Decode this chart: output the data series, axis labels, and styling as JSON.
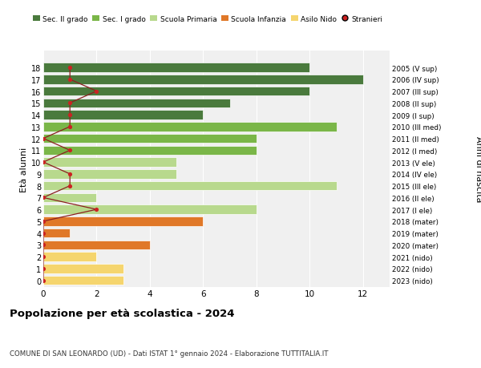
{
  "ages": [
    18,
    17,
    16,
    15,
    14,
    13,
    12,
    11,
    10,
    9,
    8,
    7,
    6,
    5,
    4,
    3,
    2,
    1,
    0
  ],
  "right_labels": [
    "2005 (V sup)",
    "2006 (IV sup)",
    "2007 (III sup)",
    "2008 (II sup)",
    "2009 (I sup)",
    "2010 (III med)",
    "2011 (II med)",
    "2012 (I med)",
    "2013 (V ele)",
    "2014 (IV ele)",
    "2015 (III ele)",
    "2016 (II ele)",
    "2017 (I ele)",
    "2018 (mater)",
    "2019 (mater)",
    "2020 (mater)",
    "2021 (nido)",
    "2022 (nido)",
    "2023 (nido)"
  ],
  "bar_values": [
    10,
    12,
    10,
    7,
    6,
    11,
    8,
    8,
    5,
    5,
    11,
    2,
    8,
    6,
    1,
    4,
    2,
    3,
    3
  ],
  "bar_colors": [
    "#4a7a3d",
    "#4a7a3d",
    "#4a7a3d",
    "#4a7a3d",
    "#4a7a3d",
    "#7ab648",
    "#7ab648",
    "#7ab648",
    "#b8d98d",
    "#b8d98d",
    "#b8d98d",
    "#b8d98d",
    "#b8d98d",
    "#e07828",
    "#e07828",
    "#e07828",
    "#f5d56e",
    "#f5d56e",
    "#f5d56e"
  ],
  "stranieri_x": [
    1,
    1,
    2,
    1,
    1,
    1,
    0,
    1,
    0,
    1,
    1,
    0,
    2,
    0,
    0,
    0,
    0,
    0,
    0
  ],
  "legend_labels": [
    "Sec. II grado",
    "Sec. I grado",
    "Scuola Primaria",
    "Scuola Infanzia",
    "Asilo Nido",
    "Stranieri"
  ],
  "legend_colors": [
    "#4a7a3d",
    "#7ab648",
    "#b8d98d",
    "#e07828",
    "#f5d56e",
    "#cc2222"
  ],
  "title": "Popolazione per età scolastica - 2024",
  "subtitle": "COMUNE DI SAN LEONARDO (UD) - Dati ISTAT 1° gennaio 2024 - Elaborazione TUTTITALIA.IT",
  "ylabel_left": "Età alunni",
  "ylabel_right": "Anni di nascita",
  "xlim": [
    0,
    13
  ],
  "ylim": [
    -0.55,
    19.4
  ],
  "bg_color": "#f0f0f0",
  "stranieri_line_color": "#8b2020",
  "xticks": [
    0,
    2,
    4,
    6,
    8,
    10,
    12
  ]
}
